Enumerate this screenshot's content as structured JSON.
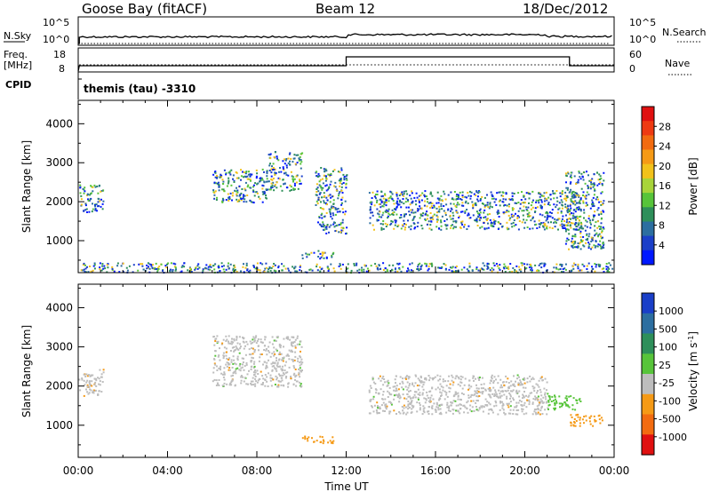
{
  "header": {
    "station": "Goose Bay (fitACF)",
    "beam": "Beam 12",
    "date": "18/Dec/2012"
  },
  "noise_panel": {
    "left_label": "N.Sky",
    "right_label": "N.Search",
    "left_ticks": [
      "10^5",
      "10^0"
    ],
    "right_ticks": [
      "10^5",
      "10^0"
    ]
  },
  "freq_panel": {
    "left_label_line1": "Freq.",
    "left_label_line2": "[MHz]",
    "left_ticks": [
      "18",
      "8"
    ],
    "right_label": "Nave",
    "right_ticks": [
      "60",
      "0"
    ]
  },
  "cpid_panel": {
    "label": "CPID",
    "text": "themis (tau) -3310"
  },
  "chart_data": [
    {
      "type": "heatmap",
      "title": "",
      "xlabel": "Time UT",
      "ylabel": "Slant Range [km]",
      "x_tick_labels": [
        "00:00",
        "04:00",
        "08:00",
        "12:00",
        "16:00",
        "20:00",
        "00:00"
      ],
      "y_tick_labels": [
        "1000",
        "2000",
        "3000",
        "4000"
      ],
      "xlim_hours": [
        0,
        24
      ],
      "ylim_km": [
        180,
        4600
      ],
      "colorbar": {
        "label": "Power [dB]",
        "tick_labels": [
          "4",
          "8",
          "12",
          "16",
          "20",
          "24",
          "28"
        ],
        "colors": [
          "#0018ff",
          "#1b3fc8",
          "#2c6ea0",
          "#2e8f5a",
          "#57c43a",
          "#a8d43a",
          "#f2c21b",
          "#f59a16",
          "#f26b10",
          "#ee3a12",
          "#e01010"
        ]
      },
      "scatter_regions": [
        {
          "t0": 0.0,
          "t1": 1.1,
          "r0": 1750,
          "r1": 2450,
          "power": "8-16"
        },
        {
          "t0": 6.0,
          "t1": 8.5,
          "r0": 2000,
          "r1": 2850,
          "power": "4-12"
        },
        {
          "t0": 8.5,
          "t1": 10.0,
          "r0": 2300,
          "r1": 3300,
          "power": "4-12"
        },
        {
          "t0": 10.6,
          "t1": 12.0,
          "r0": 1200,
          "r1": 2900,
          "power": "8-20"
        },
        {
          "t0": 10.0,
          "t1": 11.4,
          "r0": 560,
          "r1": 760,
          "power": "4-12"
        },
        {
          "t0": 13.0,
          "t1": 22.5,
          "r0": 1300,
          "r1": 2300,
          "power": "8-24"
        },
        {
          "t0": 21.8,
          "t1": 23.5,
          "r0": 800,
          "r1": 2800,
          "power": "8-24"
        },
        {
          "t0": 0.0,
          "t1": 24.0,
          "r0": 200,
          "r1": 450,
          "power": "4-24"
        }
      ]
    },
    {
      "type": "heatmap",
      "title": "",
      "xlabel": "Time UT",
      "ylabel": "Slant Range [km]",
      "x_tick_labels": [
        "00:00",
        "04:00",
        "08:00",
        "12:00",
        "16:00",
        "20:00",
        "00:00"
      ],
      "y_tick_labels": [
        "1000",
        "2000",
        "3000",
        "4000"
      ],
      "xlim_hours": [
        0,
        24
      ],
      "ylim_km": [
        180,
        4600
      ],
      "colorbar": {
        "label": "Velocity [m s^-1]",
        "tick_labels": [
          "1000",
          "500",
          "100",
          "25",
          "-25",
          "-100",
          "-500",
          "-1000"
        ],
        "colors": [
          "#1a3fc8",
          "#2c6ea0",
          "#2e8f5a",
          "#57c43a",
          "#bdbdbd",
          "#f59a16",
          "#f26b10",
          "#e01010"
        ]
      },
      "scatter_regions": [
        {
          "t0": 0.0,
          "t1": 1.1,
          "r0": 1750,
          "r1": 2450,
          "velocity": "-25 to 25"
        },
        {
          "t0": 6.0,
          "t1": 10.0,
          "r0": 2000,
          "r1": 3300,
          "velocity": "-25 to 25"
        },
        {
          "t0": 10.0,
          "t1": 11.4,
          "r0": 560,
          "r1": 760,
          "velocity": "-100 to -500"
        },
        {
          "t0": 13.0,
          "t1": 21.0,
          "r0": 1300,
          "r1": 2300,
          "velocity": "-25 to 25"
        },
        {
          "t0": 21.0,
          "t1": 22.5,
          "r0": 1400,
          "r1": 1800,
          "velocity": "25 to 100"
        },
        {
          "t0": 22.0,
          "t1": 23.5,
          "r0": 1000,
          "r1": 1300,
          "velocity": "-100 to -500"
        }
      ]
    }
  ]
}
